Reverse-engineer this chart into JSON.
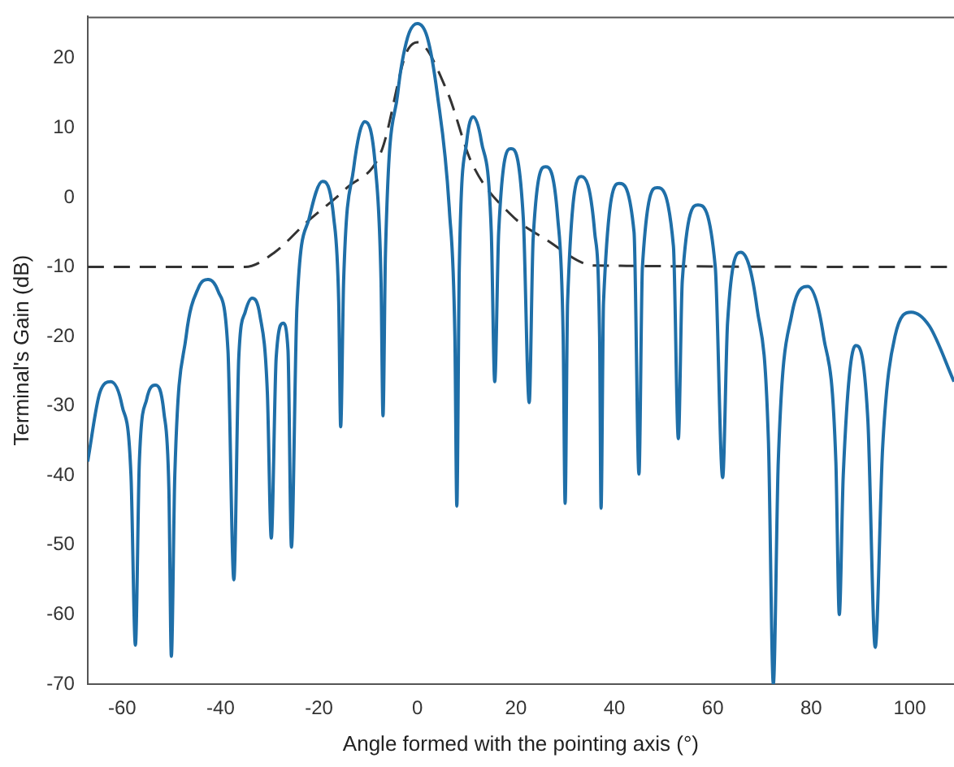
{
  "chart_data": {
    "type": "line",
    "xlabel": "Angle formed with the pointing axis (°)",
    "ylabel": "Terminal's Gain (dB)",
    "xlim": [
      -67,
      109
    ],
    "ylim": [
      -70,
      26
    ],
    "xticks": [
      -60,
      -40,
      -20,
      0,
      20,
      40,
      60,
      80,
      100
    ],
    "yticks": [
      -70,
      -60,
      -50,
      -40,
      -30,
      -20,
      -10,
      0,
      10,
      20
    ],
    "grid": false,
    "legend": false,
    "marker": "none",
    "series": [
      {
        "color": "#1f6fa8",
        "line_style": "solid",
        "x": [
          -67,
          -64.5,
          -62.3,
          -60,
          -58.2,
          -57.3,
          -56.5,
          -55,
          -53.3,
          -51.5,
          -50.5,
          -50,
          -49.3,
          -47,
          -44.5,
          -42.5,
          -40.5,
          -38.5,
          -37.3,
          -36.3,
          -35,
          -33.6,
          -32,
          -30.5,
          -29.7,
          -28.7,
          -27.3,
          -26.3,
          -25.6,
          -24.5,
          -22,
          -19.3,
          -17,
          -16,
          -15.6,
          -15,
          -13,
          -10.7,
          -8.5,
          -7.4,
          -7,
          -6.5,
          -4,
          -2,
          0,
          2,
          4,
          6.5,
          7.6,
          8,
          8.5,
          10,
          11.3,
          13,
          15,
          15.7,
          16.5,
          19,
          21.5,
          22.7,
          23.5,
          26,
          28.5,
          29.6,
          30,
          30.5,
          33.3,
          36,
          37,
          37.3,
          37.8,
          41,
          44,
          45,
          45.7,
          48.7,
          52,
          53,
          53.8,
          57,
          60.5,
          62,
          63,
          65.7,
          69,
          71.3,
          72.3,
          73.3,
          76,
          79.3,
          82.5,
          85,
          85.7,
          86.5,
          89,
          91.5,
          93,
          94.5,
          97,
          100.3,
          104,
          109
        ],
        "values": [
          -38,
          -28,
          -26.5,
          -30,
          -40,
          -64.4,
          -38,
          -29,
          -27,
          -31,
          -42,
          -66,
          -40,
          -20,
          -13,
          -11.8,
          -13.5,
          -22,
          -55,
          -23,
          -16.5,
          -14.5,
          -17,
          -28,
          -49,
          -23,
          -18.1,
          -22,
          -50.3,
          -16,
          -3,
          2.3,
          -3,
          -15,
          -33,
          -12,
          4,
          10.9,
          4,
          -12,
          -31.4,
          -8,
          15,
          23,
          25,
          23,
          15,
          -2,
          -20,
          -44.4,
          -10,
          8,
          11.6,
          8,
          -5,
          -26.5,
          -5,
          7,
          -3,
          -29.5,
          -6,
          4.4,
          -3,
          -20,
          -44,
          -15,
          3,
          -5,
          -20,
          -44.7,
          -15,
          2,
          -5,
          -39.8,
          -10,
          1.4,
          -7,
          -34.7,
          -12,
          -1.1,
          -10,
          -40.3,
          -18,
          -7.9,
          -16,
          -35,
          -70,
          -38,
          -17,
          -12.8,
          -20,
          -38,
          -60,
          -40,
          -21.3,
          -32,
          -64.7,
          -36,
          -20,
          -16.5,
          -18.5,
          -26.5
        ]
      },
      {
        "color": "#333333",
        "line_style": "dashed",
        "x": [
          -67,
          -35,
          -29,
          -22.7,
          -14.3,
          -7.3,
          -2.3,
          0,
          6,
          11,
          19,
          26,
          36,
          109
        ],
        "values": [
          -10,
          -10,
          -7.9,
          -3.7,
          1.4,
          6.7,
          20.7,
          22.3,
          15.3,
          5,
          -2.5,
          -6,
          -9.8,
          -10
        ]
      }
    ]
  }
}
